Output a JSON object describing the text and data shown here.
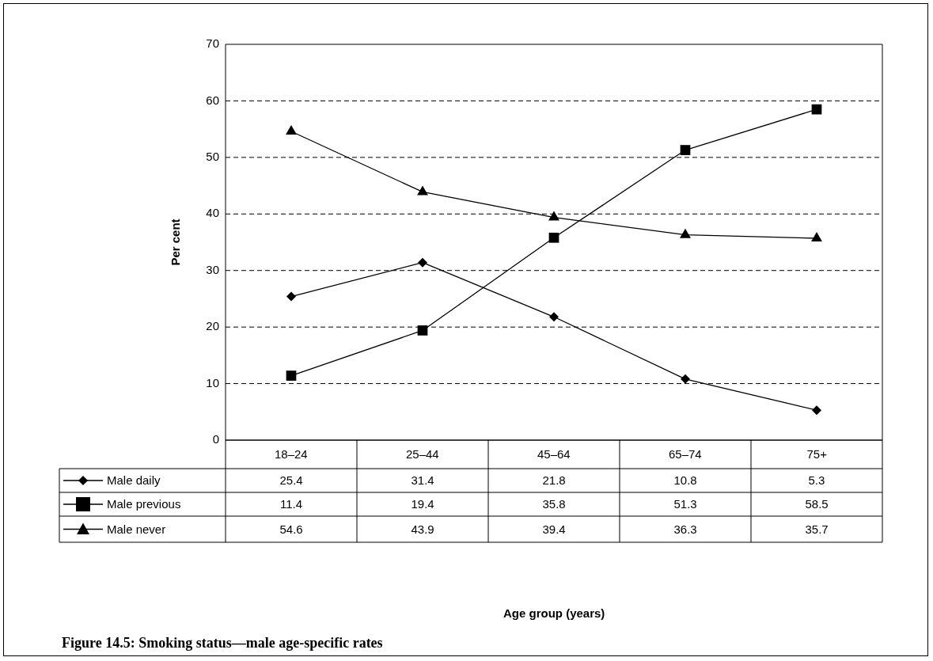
{
  "chart_data": {
    "type": "line",
    "ylabel": "Per cent",
    "title": "Figure 14.5: Smoking status—male age-specific rates",
    "annotations": [
      "Age group (years)"
    ],
    "categories": [
      "18–24",
      "25–44",
      "45–64",
      "65–74",
      "75+"
    ],
    "series": [
      {
        "name": "Male daily",
        "color": "#000000",
        "marker": "diamond",
        "values": [
          25.4,
          31.4,
          21.8,
          10.8,
          5.3
        ]
      },
      {
        "name": "Male previous",
        "color": "#000000",
        "marker": "square",
        "values": [
          11.4,
          19.4,
          35.8,
          51.3,
          58.5
        ]
      },
      {
        "name": "Male never",
        "color": "#000000",
        "marker": "triangle",
        "values": [
          54.6,
          43.9,
          39.4,
          36.3,
          35.7
        ]
      }
    ],
    "ylim": [
      0,
      70
    ],
    "yticks": [
      0,
      10,
      20,
      30,
      40,
      50,
      60,
      70
    ],
    "grid": "y",
    "legend": "bottom left",
    "data_labels": true,
    "line_style": "solid"
  }
}
